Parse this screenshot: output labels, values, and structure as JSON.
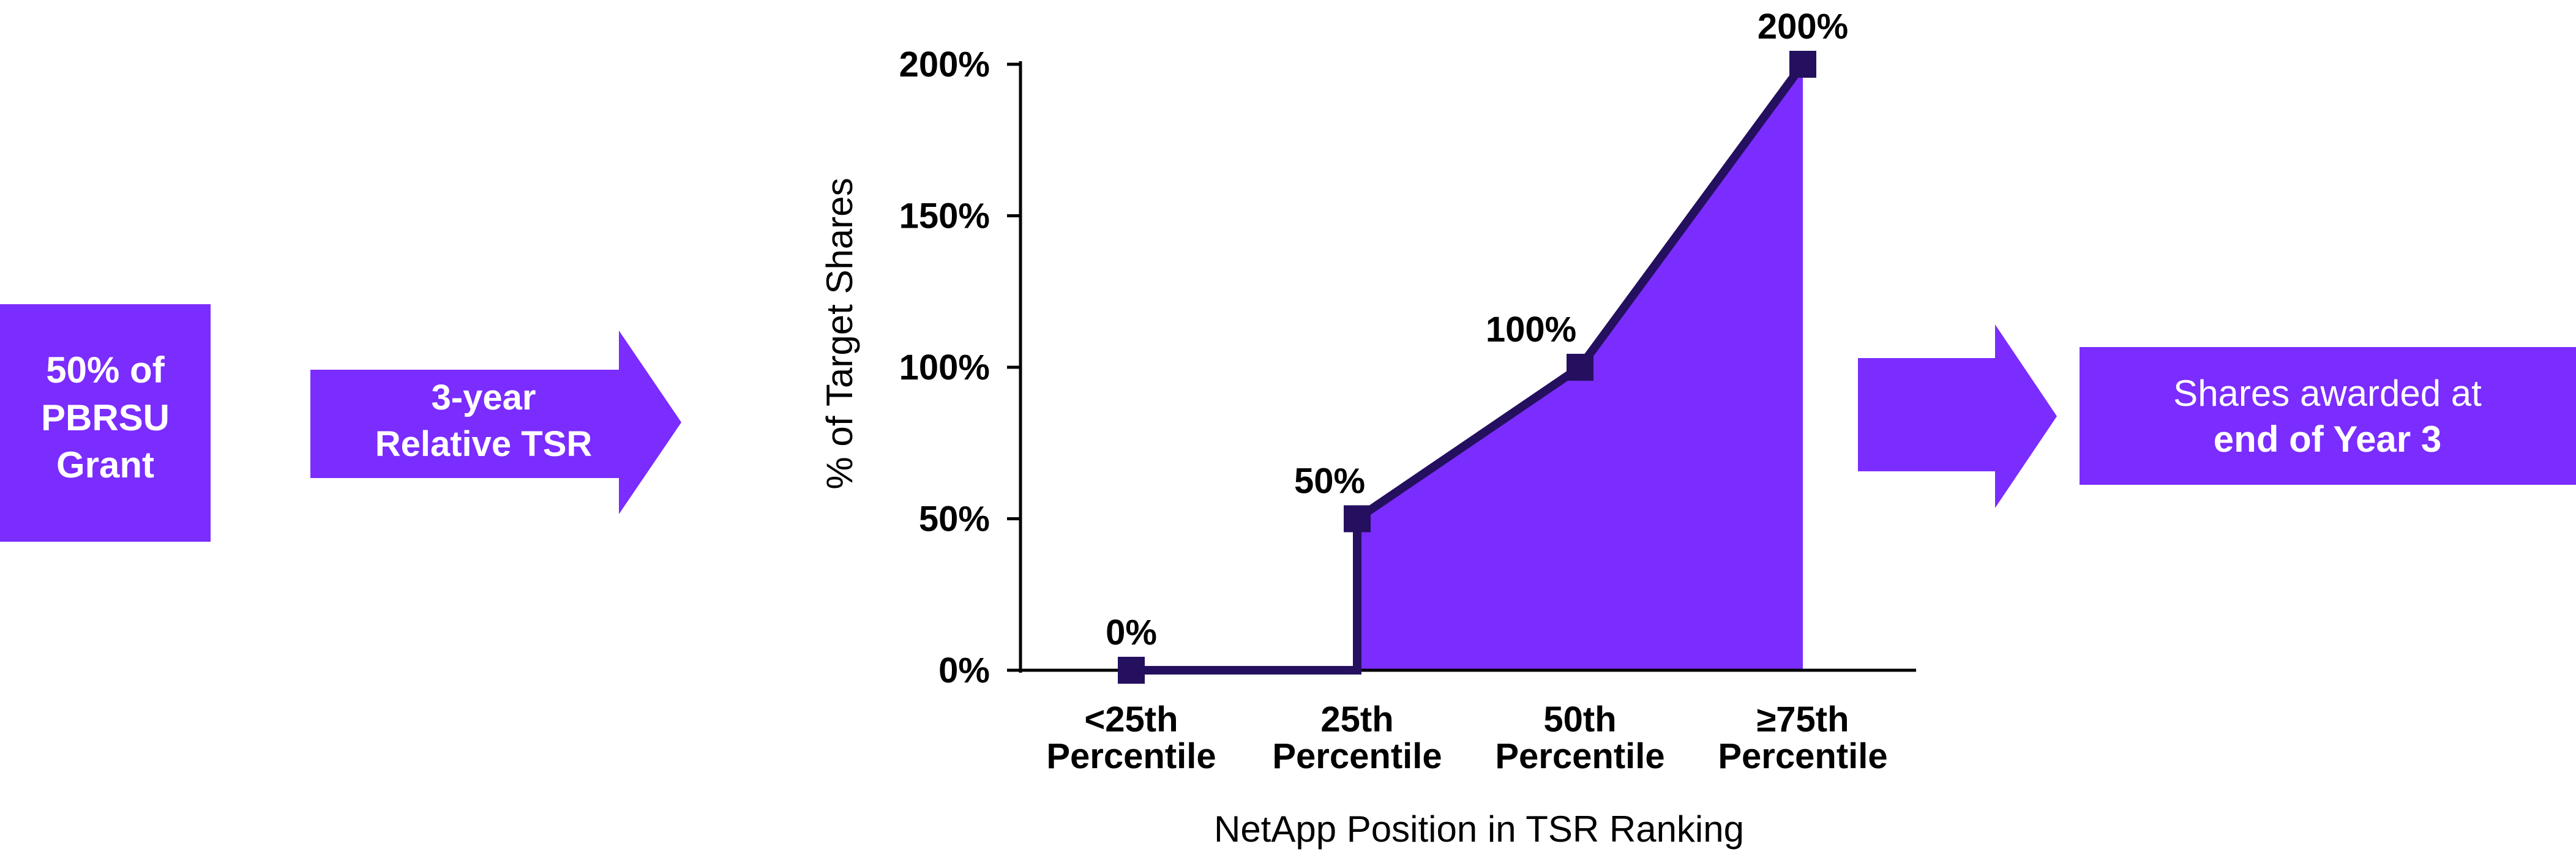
{
  "colors": {
    "purple": "#7b2cff",
    "navy": "#24105f",
    "text": "#000000",
    "white": "#ffffff"
  },
  "left_box": {
    "lines": [
      "50% of",
      "PBRSU",
      "Grant"
    ]
  },
  "arrow_1": {
    "lines": [
      "3-year",
      "Relative TSR"
    ]
  },
  "right_box": {
    "lines": [
      "Shares awarded at",
      "end of Year 3"
    ]
  },
  "chart_data": {
    "type": "area",
    "title": "",
    "xlabel": "NetApp Position in TSR Ranking",
    "ylabel": "% of Target Shares",
    "ylim": [
      0,
      200
    ],
    "y_ticks": [
      {
        "value": 0,
        "label": "0%"
      },
      {
        "value": 50,
        "label": "50%"
      },
      {
        "value": 100,
        "label": "100%"
      },
      {
        "value": 150,
        "label": "150%"
      },
      {
        "value": 200,
        "label": "200%"
      }
    ],
    "categories": [
      [
        "<25th",
        "Percentile"
      ],
      [
        "25th",
        "Percentile"
      ],
      [
        "50th",
        "Percentile"
      ],
      [
        "≥75th",
        "Percentile"
      ]
    ],
    "points": [
      {
        "x": "<25th Percentile",
        "y": 0,
        "label": "0%"
      },
      {
        "x": "25th Percentile",
        "y": 50,
        "label": "50%"
      },
      {
        "x": "50th Percentile",
        "y": 100,
        "label": "100%"
      },
      {
        "x": "≥75th Percentile",
        "y": 200,
        "label": "200%"
      }
    ],
    "grid": false,
    "legend": "none"
  }
}
